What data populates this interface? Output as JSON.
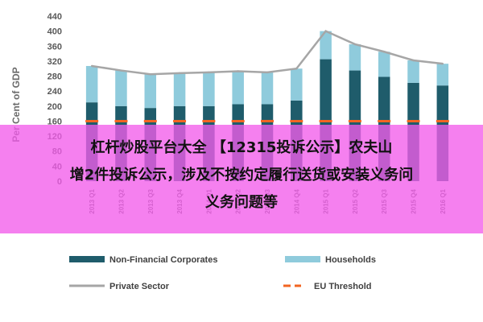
{
  "chart_data": {
    "type": "bar",
    "ylabel": "Per Cent of GDP",
    "ylim": [
      0,
      440
    ],
    "yticks": [
      0,
      40,
      80,
      120,
      160,
      200,
      240,
      280,
      320,
      360,
      400,
      440
    ],
    "categories": [
      "2013 Q1",
      "2013 Q2",
      "2013 Q3",
      "2013 Q4",
      "2014 Q1",
      "2014 Q2",
      "2014 Q3",
      "2014 Q4",
      "2015 Q1",
      "2015 Q2",
      "2015 Q3",
      "2015 Q4",
      "2016 Q1"
    ],
    "series": [
      {
        "name": "Non-Financial Corporates",
        "type": "stacked-bar",
        "values": [
          210,
          200,
          195,
          200,
          200,
          205,
          205,
          215,
          325,
          295,
          278,
          262,
          255
        ]
      },
      {
        "name": "Households",
        "type": "stacked-bar",
        "values": [
          97,
          95,
          90,
          88,
          90,
          88,
          85,
          85,
          75,
          70,
          67,
          60,
          58
        ]
      },
      {
        "name": "Private Sector",
        "type": "line",
        "values": [
          307,
          295,
          285,
          288,
          290,
          293,
          290,
          300,
          400,
          365,
          345,
          322,
          313
        ]
      },
      {
        "name": "EU Threshold",
        "type": "dashed-line",
        "values": [
          160,
          160,
          160,
          160,
          160,
          160,
          160,
          160,
          160,
          160,
          160,
          160,
          160
        ]
      }
    ],
    "colors": {
      "corporates": "#1f5c6b",
      "households": "#8fcbdc",
      "private_sector": "#a6a6a6",
      "eu_threshold": "#f26522"
    },
    "legend_position": "bottom",
    "grid": false
  },
  "overlay": {
    "line1": "杠杆炒股平台大全 【12315投诉公示】农夫山",
    "line2": "增2件投诉公示，涉及不按约定履行送货或安装义务问",
    "line3": "义务问题等"
  }
}
